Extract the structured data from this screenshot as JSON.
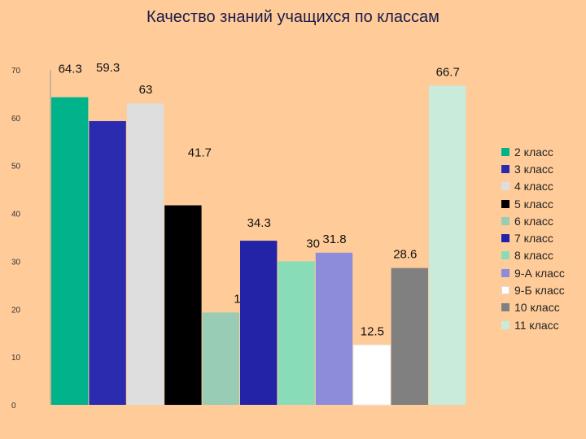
{
  "chart_data": {
    "type": "bar",
    "title": "Качество знаний учащихся по классам",
    "categories": [
      "2 класс",
      "3 класс",
      "4 класс",
      "5 класс",
      "6 класс",
      "7 класс",
      "8 класс",
      "9-А класс",
      "9-Б класс",
      "10 класс",
      "11 класс"
    ],
    "values": [
      64.3,
      59.3,
      63,
      41.7,
      19.3,
      34.3,
      30,
      31.8,
      12.5,
      28.6,
      66.7
    ],
    "value_labels": [
      "64.3",
      "59.3",
      "63",
      "41.7",
      "19.3",
      "34.3",
      "30",
      "31.8",
      "12.5",
      "28.6",
      "66.7"
    ],
    "colors": [
      "#00B38A",
      "#2B2BB0",
      "#DEDEDE",
      "#000000",
      "#99CCB5",
      "#2323A8",
      "#88DDB8",
      "#8C8CDB",
      "#FFFFFF",
      "#808080",
      "#C8EBDC"
    ],
    "ylim": [
      0,
      70
    ],
    "yticks": [
      "0",
      "10",
      "20",
      "30",
      "40",
      "50",
      "60",
      "70"
    ],
    "grid": false,
    "legend_position": "right",
    "xlabel": "",
    "ylabel": ""
  }
}
